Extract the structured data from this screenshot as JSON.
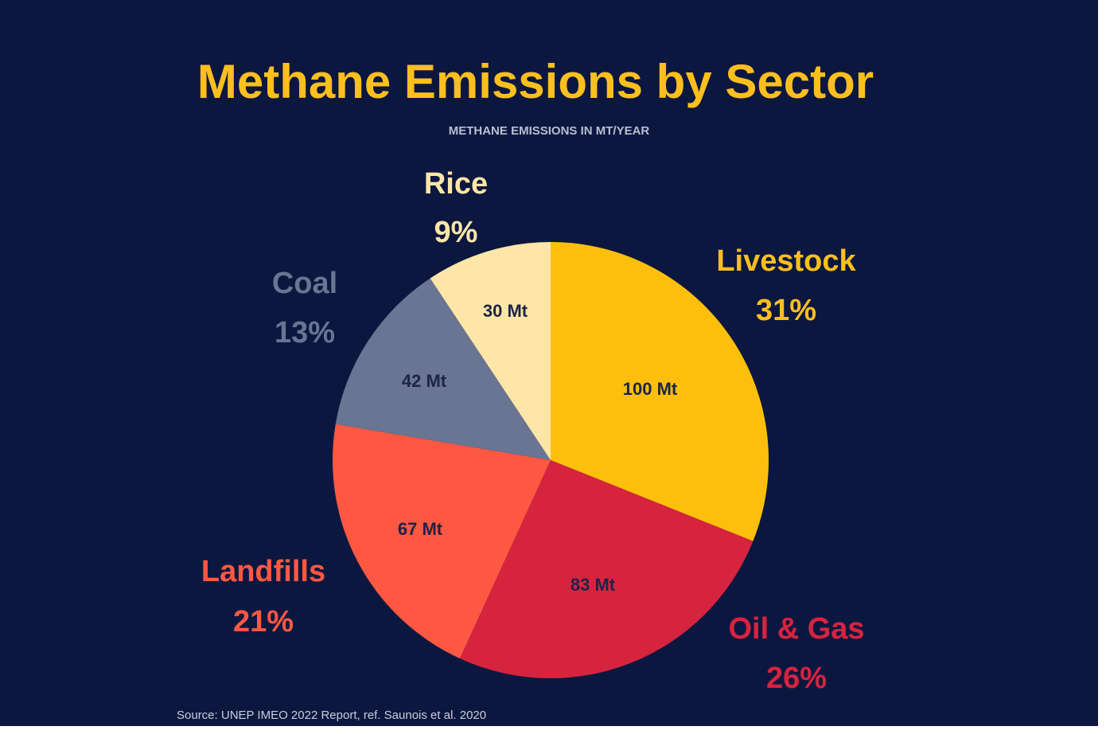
{
  "chart_data": {
    "type": "pie",
    "title": "Methane Emissions by Sector",
    "subtitle": "METHANE EMISSIONS IN MT/YEAR",
    "unit": "Mt",
    "slices": [
      {
        "name": "Livestock",
        "value": 100,
        "value_label": "100 Mt",
        "percent_label": "31%",
        "color": "#fdbf0b"
      },
      {
        "name": "Oil & Gas",
        "value": 83,
        "value_label": "83 Mt",
        "percent_label": "26%",
        "color": "#d6243f"
      },
      {
        "name": "Landfills",
        "value": 67,
        "value_label": "67 Mt",
        "percent_label": "21%",
        "color": "#ff5842"
      },
      {
        "name": "Coal",
        "value": 42,
        "value_label": "42 Mt",
        "percent_label": "13%",
        "color": "#6a7493"
      },
      {
        "name": "Rice",
        "value": 30,
        "value_label": "30 Mt",
        "percent_label": "9%",
        "color": "#fee6a8"
      }
    ],
    "start_angle": "12 o'clock",
    "direction": "clockwise",
    "legend": "none"
  },
  "label_colors": {
    "Livestock": "#fdbf1e",
    "Oil & Gas": "#d6243f",
    "Landfills": "#ff5842",
    "Coal": "#6a7493",
    "Rice": "#fee6a8"
  },
  "source": "Source: UNEP IMEO 2022 Report, ref. Saunois et al. 2020",
  "background": "#0c1740"
}
